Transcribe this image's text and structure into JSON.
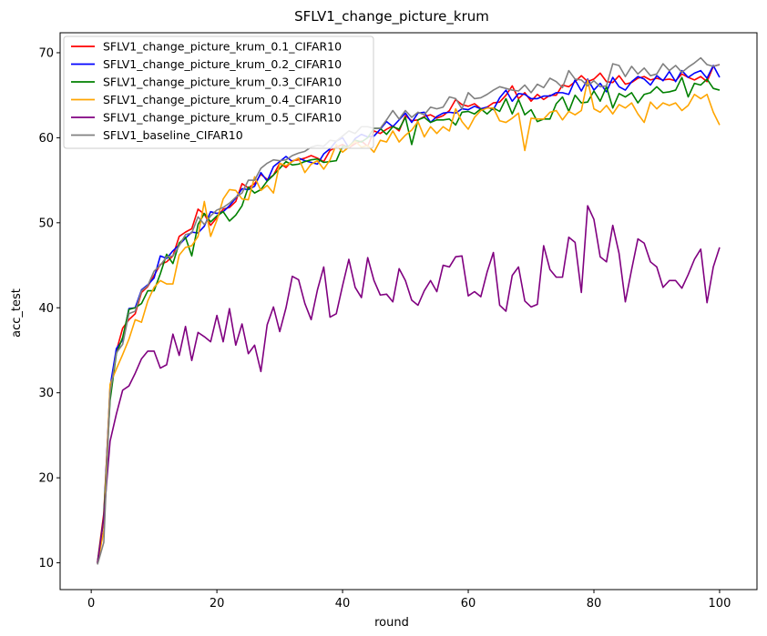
{
  "chart_data": {
    "type": "line",
    "title": "SFLV1_change_picture_krum",
    "xlabel": "round",
    "ylabel": "acc_test",
    "xlim": [
      -4.95,
      105.95
    ],
    "ylim": [
      6.85,
      72.35
    ],
    "xticks": [
      0,
      20,
      40,
      60,
      80,
      100
    ],
    "yticks": [
      10,
      20,
      30,
      40,
      50,
      60,
      70
    ],
    "grid": false,
    "legend": "top-left",
    "x": [
      1,
      2,
      3,
      4,
      5,
      6,
      7,
      8,
      9,
      10,
      11,
      12,
      13,
      14,
      15,
      16,
      17,
      18,
      19,
      20,
      21,
      22,
      23,
      24,
      25,
      26,
      27,
      28,
      29,
      30,
      31,
      32,
      33,
      34,
      35,
      36,
      37,
      38,
      39,
      40,
      41,
      42,
      43,
      44,
      45,
      46,
      47,
      48,
      49,
      50,
      51,
      52,
      53,
      54,
      55,
      56,
      57,
      58,
      59,
      60,
      61,
      62,
      63,
      64,
      65,
      66,
      67,
      68,
      69,
      70,
      71,
      72,
      73,
      74,
      75,
      76,
      77,
      78,
      79,
      80,
      81,
      82,
      83,
      84,
      85,
      86,
      87,
      88,
      89,
      90,
      91,
      92,
      93,
      94,
      95,
      96,
      97,
      98,
      99,
      100
    ],
    "series": [
      {
        "name": "SFLV1_change_picture_krum_0.1_CIFAR10",
        "color": "#ff0000",
        "values": [
          10.1,
          15.8,
          29.9,
          34.9,
          37.6,
          38.6,
          39.3,
          41.8,
          42.5,
          43.8,
          45.1,
          45.4,
          46.1,
          48.4,
          48.9,
          49.3,
          51.6,
          51.0,
          49.7,
          50.6,
          51.6,
          51.8,
          52.5,
          54.6,
          54.1,
          54.6,
          55.7,
          55.1,
          55.6,
          57.0,
          56.5,
          57.3,
          57.4,
          57.6,
          57.9,
          57.6,
          57.2,
          58.5,
          58.9,
          59.2,
          58.8,
          59.3,
          59.6,
          59.0,
          60.8,
          60.5,
          61.0,
          61.4,
          60.8,
          62.6,
          62.0,
          62.1,
          62.5,
          62.7,
          62.3,
          62.6,
          63.2,
          64.5,
          63.9,
          63.7,
          64.0,
          63.4,
          63.6,
          64.1,
          64.2,
          65.0,
          66.1,
          64.6,
          65.3,
          64.3,
          65.1,
          64.5,
          65.0,
          65.0,
          66.2,
          66.0,
          66.6,
          67.3,
          66.6,
          66.9,
          67.6,
          66.6,
          66.5,
          67.3,
          66.3,
          66.5,
          67.0,
          67.2,
          66.8,
          67.0,
          66.8,
          66.9,
          66.7,
          67.5,
          67.1,
          66.8,
          67.2,
          66.6,
          68.4,
          68.6
        ]
      },
      {
        "name": "SFLV1_change_picture_krum_0.2_CIFAR10",
        "color": "#0000ff",
        "values": [
          10.0,
          15.2,
          30.7,
          35.2,
          36.2,
          39.9,
          40.0,
          42.1,
          42.7,
          43.5,
          46.1,
          45.8,
          46.7,
          47.4,
          48.2,
          48.9,
          48.8,
          49.6,
          51.3,
          51.1,
          51.3,
          52.0,
          52.9,
          54.0,
          53.9,
          54.3,
          55.9,
          54.9,
          56.6,
          57.2,
          57.8,
          57.2,
          57.6,
          57.3,
          57.1,
          56.9,
          58.1,
          58.7,
          59.6,
          60.0,
          58.8,
          59.9,
          60.4,
          60.1,
          60.2,
          61.0,
          61.9,
          61.3,
          62.1,
          62.9,
          61.8,
          62.9,
          63.0,
          61.8,
          62.5,
          62.9,
          63.0,
          62.9,
          63.4,
          63.3,
          63.7,
          63.4,
          63.6,
          63.3,
          64.7,
          65.6,
          64.3,
          65.2,
          65.1,
          64.6,
          64.6,
          64.9,
          64.9,
          65.3,
          65.3,
          65.1,
          66.8,
          65.5,
          66.9,
          65.6,
          66.4,
          65.4,
          67.1,
          66.0,
          65.6,
          66.6,
          67.2,
          66.9,
          66.2,
          67.3,
          66.7,
          67.8,
          66.6,
          67.9,
          67.1,
          67.6,
          67.9,
          67.0,
          68.5,
          67.1
        ]
      },
      {
        "name": "SFLV1_change_picture_krum_0.3_CIFAR10",
        "color": "#008000",
        "values": [
          10.0,
          15.4,
          29.1,
          34.6,
          36.5,
          39.8,
          40.0,
          40.5,
          42.0,
          42.0,
          44.0,
          46.3,
          45.2,
          47.6,
          48.3,
          46.1,
          49.8,
          51.1,
          50.1,
          50.8,
          51.3,
          50.2,
          50.9,
          52.0,
          54.2,
          53.5,
          53.9,
          54.9,
          55.6,
          56.4,
          57.2,
          56.8,
          56.9,
          57.2,
          57.4,
          57.5,
          57.1,
          57.2,
          57.3,
          59.0,
          59.0,
          59.7,
          59.5,
          60.0,
          61.1,
          61.1,
          60.4,
          61.3,
          61.0,
          62.4,
          59.2,
          62.1,
          62.4,
          61.8,
          62.1,
          62.1,
          62.2,
          61.5,
          63.0,
          63.1,
          62.8,
          63.4,
          62.8,
          63.5,
          63.1,
          64.6,
          62.8,
          64.5,
          62.7,
          63.3,
          61.9,
          62.2,
          62.2,
          64.0,
          64.8,
          63.1,
          65.0,
          64.1,
          64.2,
          65.5,
          64.3,
          66.0,
          63.5,
          65.2,
          64.8,
          65.3,
          64.1,
          65.1,
          65.3,
          66.0,
          65.3,
          65.4,
          65.6,
          67.1,
          64.8,
          66.4,
          66.2,
          66.9,
          65.8,
          65.6
        ]
      },
      {
        "name": "SFLV1_change_picture_krum_0.4_CIFAR10",
        "color": "#ffa500",
        "values": [
          9.9,
          13.8,
          31.0,
          32.8,
          34.5,
          36.3,
          38.6,
          38.3,
          40.8,
          42.4,
          43.2,
          42.8,
          42.8,
          46.2,
          47.1,
          47.3,
          48.4,
          52.5,
          48.4,
          50.3,
          52.8,
          53.9,
          53.8,
          52.8,
          52.7,
          55.4,
          53.8,
          54.4,
          53.5,
          57.0,
          56.7,
          57.2,
          57.6,
          55.9,
          56.9,
          57.3,
          56.3,
          57.4,
          59.2,
          58.3,
          58.9,
          59.6,
          58.9,
          59.1,
          58.3,
          59.7,
          59.5,
          60.8,
          59.5,
          60.3,
          60.9,
          61.9,
          60.1,
          61.3,
          60.5,
          61.3,
          60.8,
          63.4,
          61.9,
          61.0,
          62.4,
          63.2,
          63.5,
          63.5,
          62.0,
          61.8,
          62.3,
          62.9,
          58.5,
          62.3,
          62.2,
          62.2,
          63.0,
          63.2,
          62.1,
          63.1,
          62.7,
          63.2,
          66.8,
          63.4,
          63.0,
          63.8,
          62.8,
          63.9,
          63.5,
          64.1,
          62.8,
          61.8,
          64.2,
          63.4,
          64.1,
          63.8,
          64.1,
          63.2,
          63.8,
          65.1,
          64.6,
          65.1,
          63.0,
          61.5
        ]
      },
      {
        "name": "SFLV1_change_picture_krum_0.5_CIFAR10",
        "color": "#800080",
        "values": [
          9.9,
          15.3,
          24.3,
          27.5,
          30.3,
          30.8,
          32.3,
          34.0,
          34.9,
          34.9,
          32.9,
          33.3,
          36.9,
          34.4,
          37.8,
          33.8,
          37.1,
          36.6,
          36.0,
          39.1,
          36.0,
          39.9,
          35.6,
          38.1,
          34.6,
          35.6,
          32.5,
          38.0,
          40.1,
          37.2,
          40.0,
          43.7,
          43.3,
          40.5,
          38.6,
          42.1,
          44.8,
          38.9,
          39.3,
          42.6,
          45.7,
          42.4,
          41.2,
          45.9,
          43.2,
          41.5,
          41.6,
          40.7,
          44.6,
          43.2,
          40.9,
          40.3,
          42.0,
          43.2,
          41.9,
          45.0,
          44.8,
          46.0,
          46.1,
          41.4,
          41.9,
          41.3,
          44.2,
          46.5,
          40.3,
          39.6,
          43.8,
          44.8,
          40.8,
          40.1,
          40.4,
          47.3,
          44.5,
          43.6,
          43.6,
          48.3,
          47.7,
          41.8,
          52.0,
          50.4,
          46.0,
          45.4,
          49.7,
          46.4,
          40.7,
          44.5,
          48.1,
          47.6,
          45.4,
          44.8,
          42.4,
          43.2,
          43.2,
          42.3,
          43.9,
          45.7,
          46.9,
          40.6,
          44.8,
          47.1
        ]
      },
      {
        "name": "SFLV1_baseline_CIFAR10",
        "color": "#808080",
        "values": [
          9.8,
          12.4,
          29.9,
          34.7,
          35.7,
          39.3,
          39.6,
          42.0,
          42.6,
          44.3,
          45.0,
          46.0,
          46.1,
          47.3,
          48.6,
          48.8,
          50.7,
          49.8,
          50.8,
          51.5,
          51.8,
          52.3,
          53.0,
          53.5,
          55.0,
          55.0,
          56.4,
          57.0,
          57.4,
          57.3,
          57.4,
          57.9,
          58.2,
          58.4,
          58.9,
          59.1,
          59.0,
          59.7,
          59.6,
          60.2,
          60.8,
          60.5,
          61.3,
          61.3,
          61.1,
          61.1,
          62.1,
          63.2,
          62.2,
          63.2,
          62.4,
          63.0,
          62.7,
          63.6,
          63.4,
          63.6,
          64.8,
          64.6,
          63.4,
          65.3,
          64.6,
          64.7,
          65.1,
          65.6,
          66.0,
          65.8,
          65.6,
          65.5,
          66.2,
          65.3,
          66.3,
          65.9,
          67.0,
          66.6,
          65.9,
          67.9,
          66.9,
          66.8,
          66.1,
          66.7,
          66.0,
          66.1,
          68.7,
          68.5,
          67.2,
          68.4,
          67.5,
          68.2,
          67.3,
          67.5,
          68.7,
          67.9,
          68.5,
          67.7,
          68.3,
          68.8,
          69.4,
          68.6,
          68.4,
          68.6
        ]
      }
    ]
  }
}
